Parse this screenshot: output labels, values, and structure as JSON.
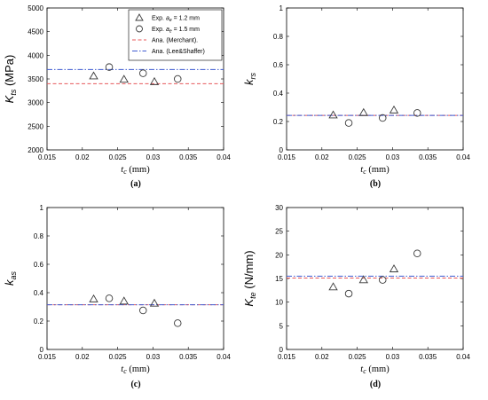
{
  "panel_labels": [
    "(a)",
    "(b)",
    "(c)",
    "(d)"
  ],
  "legend": {
    "entries": [
      {
        "label": "Exp. a_e = 1.2 mm",
        "main": "Exp. ",
        "sym": "a",
        "sub": "e",
        "rest": " = 1.2 mm",
        "marker": "triangle"
      },
      {
        "label": "Exp. a_e = 1.5 mm",
        "main": "Exp. ",
        "sym": "a",
        "sub": "e",
        "rest": " = 1.5 mm",
        "marker": "circle"
      },
      {
        "label": "Ana. (Merchant).",
        "main": "Ana. (Merchant).",
        "marker": "dash-red"
      },
      {
        "label": "Ana. (Lee&Shaffer)",
        "main": "Ana. (Lee&Shaffer)",
        "marker": "dashdot-blue"
      }
    ]
  },
  "colors": {
    "merchant": "#e8585b",
    "leeshaffer": "#3f5bd1",
    "marker": "#3a3a3a"
  },
  "chart_data": [
    {
      "panel": "(a)",
      "type": "scatter",
      "ylabel": "K",
      "ylabel_sub": "ts",
      "ylabel_unit": " (MPa)",
      "xlabel": "t",
      "xlabel_sub": "c",
      "xlabel_unit": " (mm)",
      "xlim": [
        0.015,
        0.04
      ],
      "ylim": [
        2000,
        5000
      ],
      "xticks": [
        "0.015",
        "0.02",
        "0.025",
        "0.03",
        "0.035",
        "0.04"
      ],
      "yticks": [
        "2000",
        "2500",
        "3000",
        "3500",
        "4000",
        "4500",
        "5000"
      ],
      "legend_position": "top-right",
      "series": [
        {
          "name": "Exp. a_e = 1.2 mm",
          "marker": "triangle",
          "x": [
            0.0216,
            0.0259,
            0.0302
          ],
          "y": [
            3560,
            3490,
            3440
          ]
        },
        {
          "name": "Exp. a_e = 1.5 mm",
          "marker": "circle",
          "x": [
            0.0238,
            0.0286,
            0.0335
          ],
          "y": [
            3750,
            3620,
            3500
          ]
        }
      ],
      "lines": [
        {
          "name": "Ana. (Merchant).",
          "style": "dash-red",
          "y": 3400
        },
        {
          "name": "Ana. (Lee&Shaffer)",
          "style": "dashdot-blue",
          "y": 3700
        }
      ]
    },
    {
      "panel": "(b)",
      "type": "scatter",
      "ylabel": "k",
      "ylabel_sub": "rs",
      "ylabel_unit": "",
      "xlabel": "t",
      "xlabel_sub": "c",
      "xlabel_unit": " (mm)",
      "xlim": [
        0.015,
        0.04
      ],
      "ylim": [
        0,
        1
      ],
      "xticks": [
        "0.015",
        "0.02",
        "0.025",
        "0.03",
        "0.035",
        "0.04"
      ],
      "yticks": [
        "0",
        "0.2",
        "0.4",
        "0.6",
        "0.8",
        "1"
      ],
      "series": [
        {
          "name": "Exp. a_e = 1.2 mm",
          "marker": "triangle",
          "x": [
            0.0216,
            0.0259,
            0.0302
          ],
          "y": [
            0.245,
            0.262,
            0.28
          ]
        },
        {
          "name": "Exp. a_e = 1.5 mm",
          "marker": "circle",
          "x": [
            0.0238,
            0.0286,
            0.0335
          ],
          "y": [
            0.19,
            0.225,
            0.26
          ]
        }
      ],
      "lines": [
        {
          "name": "Ana. (Merchant).",
          "style": "dash-red",
          "y": 0.243
        },
        {
          "name": "Ana. (Lee&Shaffer)",
          "style": "dashdot-blue",
          "y": 0.243
        }
      ]
    },
    {
      "panel": "(c)",
      "type": "scatter",
      "ylabel": "k",
      "ylabel_sub": "as",
      "ylabel_unit": "",
      "xlabel": "t",
      "xlabel_sub": "c",
      "xlabel_unit": " (mm)",
      "xlim": [
        0.015,
        0.04
      ],
      "ylim": [
        0,
        1
      ],
      "xticks": [
        "0.015",
        "0.02",
        "0.025",
        "0.03",
        "0.035",
        "0.04"
      ],
      "yticks": [
        "0",
        "0.2",
        "0.4",
        "0.6",
        "0.8",
        "1"
      ],
      "series": [
        {
          "name": "Exp. a_e = 1.2 mm",
          "marker": "triangle",
          "x": [
            0.0216,
            0.0259,
            0.0302
          ],
          "y": [
            0.355,
            0.34,
            0.325
          ]
        },
        {
          "name": "Exp. a_e = 1.5 mm",
          "marker": "circle",
          "x": [
            0.0238,
            0.0286,
            0.0335
          ],
          "y": [
            0.36,
            0.275,
            0.185
          ]
        }
      ],
      "lines": [
        {
          "name": "Ana. (Merchant).",
          "style": "dash-red",
          "y": 0.315
        },
        {
          "name": "Ana. (Lee&Shaffer)",
          "style": "dashdot-blue",
          "y": 0.315
        }
      ]
    },
    {
      "panel": "(d)",
      "type": "scatter",
      "ylabel": "K",
      "ylabel_sub": "te",
      "ylabel_unit": " (N/mm)",
      "xlabel": "t",
      "xlabel_sub": "c",
      "xlabel_unit": " (mm)",
      "xlim": [
        0.015,
        0.04
      ],
      "ylim": [
        0,
        30
      ],
      "xticks": [
        "0.015",
        "0.02",
        "0.025",
        "0.03",
        "0.035",
        "0.04"
      ],
      "yticks": [
        "0",
        "5",
        "10",
        "15",
        "20",
        "25",
        "30"
      ],
      "series": [
        {
          "name": "Exp. a_e = 1.2 mm",
          "marker": "triangle",
          "x": [
            0.0216,
            0.0259,
            0.0302
          ],
          "y": [
            13.2,
            14.7,
            17.0
          ]
        },
        {
          "name": "Exp. a_e = 1.5 mm",
          "marker": "circle",
          "x": [
            0.0238,
            0.0286,
            0.0335
          ],
          "y": [
            11.8,
            14.7,
            20.3
          ]
        }
      ],
      "lines": [
        {
          "name": "Ana. (Merchant).",
          "style": "dash-red",
          "y": 15.1
        },
        {
          "name": "Ana. (Lee&Shaffer)",
          "style": "dashdot-blue",
          "y": 15.5
        }
      ]
    }
  ]
}
